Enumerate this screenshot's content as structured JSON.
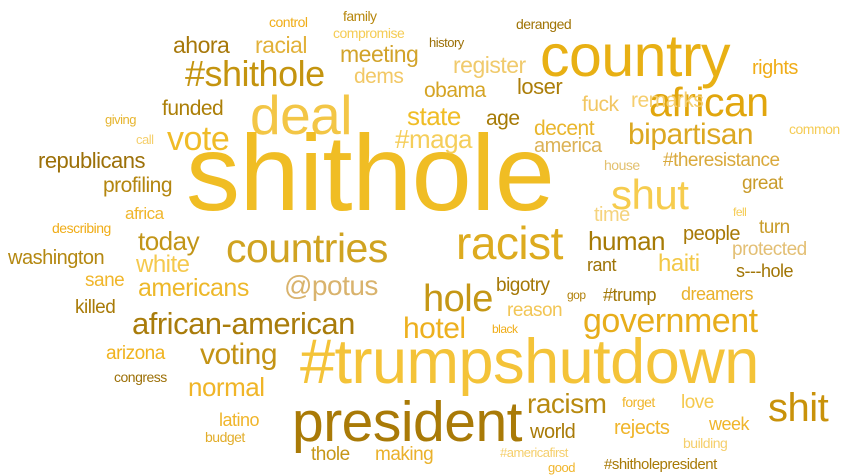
{
  "words": [
    {
      "text": "shithole",
      "color": "#f0bd24"
    },
    {
      "text": "#trumpshutdown",
      "color": "#f4c338"
    },
    {
      "text": "country",
      "color": "#e8b014"
    },
    {
      "text": "president",
      "color": "#a97a07"
    },
    {
      "text": "deal",
      "color": "#f3c646"
    },
    {
      "text": "racist",
      "color": "#ddab1f"
    },
    {
      "text": "countries",
      "color": "#d0a321"
    },
    {
      "text": "african",
      "color": "#e1a60d"
    },
    {
      "text": "#shithole",
      "color": "#c4940f"
    },
    {
      "text": "shut",
      "color": "#f6cc4e"
    },
    {
      "text": "government",
      "color": "#e7ad1b"
    },
    {
      "text": "hole",
      "color": "#c59715"
    },
    {
      "text": "african-american",
      "color": "#a97c0b"
    },
    {
      "text": "shit",
      "color": "#c9920a"
    },
    {
      "text": "bipartisan",
      "color": "#dca822"
    },
    {
      "text": "vote",
      "color": "#f0bb27"
    },
    {
      "text": "hotel",
      "color": "#edb01e"
    },
    {
      "text": "@potus",
      "color": "#d9b36d"
    },
    {
      "text": "state",
      "color": "#f0bd26"
    },
    {
      "text": "voting",
      "color": "#c39315"
    },
    {
      "text": "racism",
      "color": "#b88a10"
    },
    {
      "text": "#maga",
      "color": "#f5ce5a"
    },
    {
      "text": "today",
      "color": "#c29518"
    },
    {
      "text": "americans",
      "color": "#edb82a"
    },
    {
      "text": "human",
      "color": "#a67a05"
    },
    {
      "text": "normal",
      "color": "#f0b528"
    },
    {
      "text": "white",
      "color": "#f5c94e"
    },
    {
      "text": "haiti",
      "color": "#f3c846"
    },
    {
      "text": "ahora",
      "color": "#a7780a"
    },
    {
      "text": "racial",
      "color": "#e2b139"
    },
    {
      "text": "meeting",
      "color": "#d2a32a"
    },
    {
      "text": "dems",
      "color": "#f2c866"
    },
    {
      "text": "register",
      "color": "#f0ca6c"
    },
    {
      "text": "obama",
      "color": "#d5a424"
    },
    {
      "text": "loser",
      "color": "#ac7e09"
    },
    {
      "text": "rights",
      "color": "#f0ad18"
    },
    {
      "text": "republicans",
      "color": "#9c7008"
    },
    {
      "text": "profiling",
      "color": "#b4860f"
    },
    {
      "text": "funded",
      "color": "#ac7f07"
    },
    {
      "text": "age",
      "color": "#a67a05"
    },
    {
      "text": "decent",
      "color": "#e9b62d"
    },
    {
      "text": "america",
      "color": "#dcb256"
    },
    {
      "text": "fuck",
      "color": "#f2c662"
    },
    {
      "text": "remarks",
      "color": "#f5ce6e"
    },
    {
      "text": "#theresistance",
      "color": "#d9a93c"
    },
    {
      "text": "great",
      "color": "#c99b2a"
    },
    {
      "text": "time",
      "color": "#f5d37e"
    },
    {
      "text": "turn",
      "color": "#c99d2b"
    },
    {
      "text": "people",
      "color": "#a87a07"
    },
    {
      "text": "protected",
      "color": "#e3bf74"
    },
    {
      "text": "washington",
      "color": "#b48811"
    },
    {
      "text": "sane",
      "color": "#f0b62b"
    },
    {
      "text": "killed",
      "color": "#a97b08"
    },
    {
      "text": "rant",
      "color": "#9e7408"
    },
    {
      "text": "bigotry",
      "color": "#a57806"
    },
    {
      "text": "s---hole",
      "color": "#a17505"
    },
    {
      "text": "#trump",
      "color": "#a17706"
    },
    {
      "text": "dreamers",
      "color": "#eab12b"
    },
    {
      "text": "reason",
      "color": "#f2c656"
    },
    {
      "text": "arizona",
      "color": "#f0b31f"
    },
    {
      "text": "latino",
      "color": "#f0b52b"
    },
    {
      "text": "world",
      "color": "#a97b08"
    },
    {
      "text": "rejects",
      "color": "#f0b52b"
    },
    {
      "text": "week",
      "color": "#f0b52b"
    },
    {
      "text": "love",
      "color": "#f5c94e"
    },
    {
      "text": "thole",
      "color": "#c69718"
    },
    {
      "text": "making",
      "color": "#eab12b"
    },
    {
      "text": "africa",
      "color": "#f0b62b"
    },
    {
      "text": "giving",
      "color": "#e6b42e"
    },
    {
      "text": "call",
      "color": "#f5cf6c"
    },
    {
      "text": "describing",
      "color": "#f0ad18"
    },
    {
      "text": "congress",
      "color": "#9c7008"
    },
    {
      "text": "budget",
      "color": "#e2ad2a"
    },
    {
      "text": "family",
      "color": "#b7870d"
    },
    {
      "text": "control",
      "color": "#f0ad18"
    },
    {
      "text": "compromise",
      "color": "#f5cc55"
    },
    {
      "text": "history",
      "color": "#9c7008"
    },
    {
      "text": "deranged",
      "color": "#a07406"
    },
    {
      "text": "common",
      "color": "#f5cc55"
    },
    {
      "text": "house",
      "color": "#e3c170"
    },
    {
      "text": "fell",
      "color": "#f5cc55"
    },
    {
      "text": "gop",
      "color": "#b18009"
    },
    {
      "text": "black",
      "color": "#f0ad18"
    },
    {
      "text": "forget",
      "color": "#f0b52b"
    },
    {
      "text": "building",
      "color": "#f5cf6c"
    },
    {
      "text": "#americafirst",
      "color": "#f5cf6c"
    },
    {
      "text": "good",
      "color": "#f0b52b"
    },
    {
      "text": "#shitholepresident",
      "color": "#a87a07"
    }
  ]
}
